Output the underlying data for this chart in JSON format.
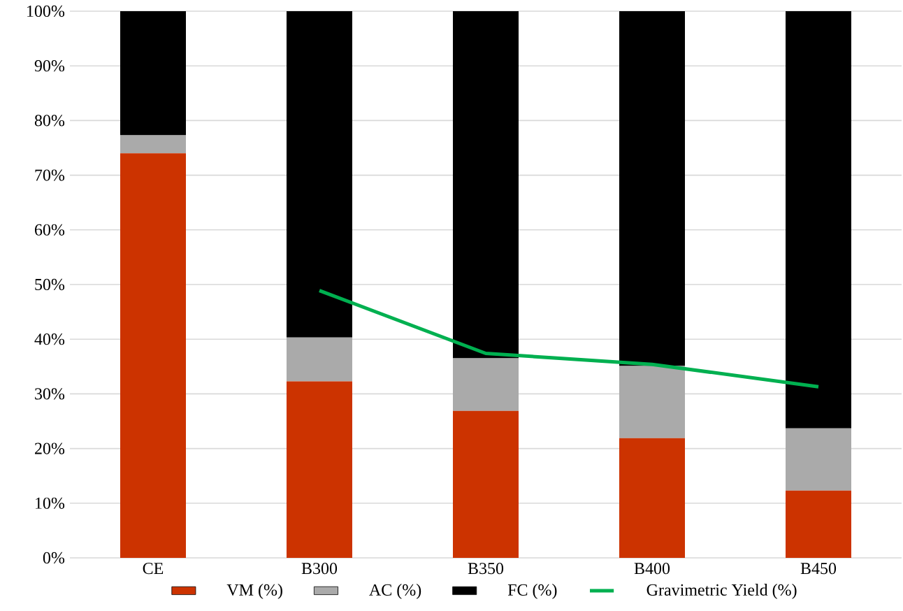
{
  "chart_data": {
    "type": "bar",
    "stacked": true,
    "categories": [
      "CE",
      "B300",
      "B350",
      "B400",
      "B450"
    ],
    "series": [
      {
        "name": "VM (%)",
        "color": "#cc3300",
        "values": [
          74.0,
          32.3,
          26.9,
          21.9,
          12.3
        ]
      },
      {
        "name": "AC (%)",
        "color": "#aaaaaa",
        "values": [
          3.3,
          8.0,
          9.6,
          13.2,
          11.4
        ]
      },
      {
        "name": "FC (%)",
        "color": "#000000",
        "values": [
          22.7,
          59.7,
          63.5,
          64.9,
          76.3
        ]
      },
      {
        "name": "Gravimetric Yield (%)",
        "color": "#00b050",
        "type": "line",
        "values": [
          null,
          48.9,
          37.4,
          35.4,
          31.3
        ]
      }
    ],
    "ylim": [
      0,
      100
    ],
    "yticks": [
      {
        "value": 0,
        "label": "0%"
      },
      {
        "value": 10,
        "label": "10%"
      },
      {
        "value": 20,
        "label": "20%"
      },
      {
        "value": 30,
        "label": "30%"
      },
      {
        "value": 40,
        "label": "40%"
      },
      {
        "value": 50,
        "label": "50%"
      },
      {
        "value": 60,
        "label": "60%"
      },
      {
        "value": 70,
        "label": "70%"
      },
      {
        "value": 80,
        "label": "80%"
      },
      {
        "value": 90,
        "label": "90%"
      },
      {
        "value": 100,
        "label": "100%"
      }
    ],
    "grid": "y",
    "legend": "bottom"
  }
}
